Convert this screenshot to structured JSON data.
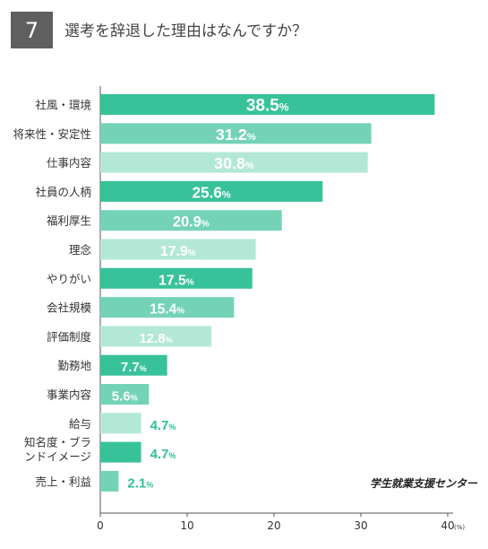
{
  "header": {
    "number": "7",
    "question": "選考を辞退した理由はなんですか？"
  },
  "source": "学生就業支援センター",
  "colors": {
    "dark": "#38c29a",
    "mid": "#74d3b6",
    "light": "#b3e8d7",
    "axis": "#555555",
    "outside_label": "#2fbf98"
  },
  "chart_data": {
    "type": "bar",
    "orientation": "horizontal",
    "categories": [
      "社風・環境",
      "将来性・安定性",
      "仕事内容",
      "社員の人柄",
      "福利厚生",
      "理念",
      "やりがい",
      "会社規模",
      "評価制度",
      "勤務地",
      "事業内容",
      "給与",
      "知名度・ブランドイメージ",
      "売上・利益"
    ],
    "values": [
      38.5,
      31.2,
      30.8,
      25.6,
      20.9,
      17.9,
      17.5,
      15.4,
      12.8,
      7.7,
      5.6,
      4.7,
      4.7,
      2.1
    ],
    "value_suffix": "%",
    "color_cycle": [
      "dark",
      "mid",
      "light"
    ],
    "xlim": [
      0,
      40
    ],
    "xticks": [
      0,
      10,
      20,
      30,
      40
    ],
    "x_unit": "(%)",
    "grid": false
  }
}
